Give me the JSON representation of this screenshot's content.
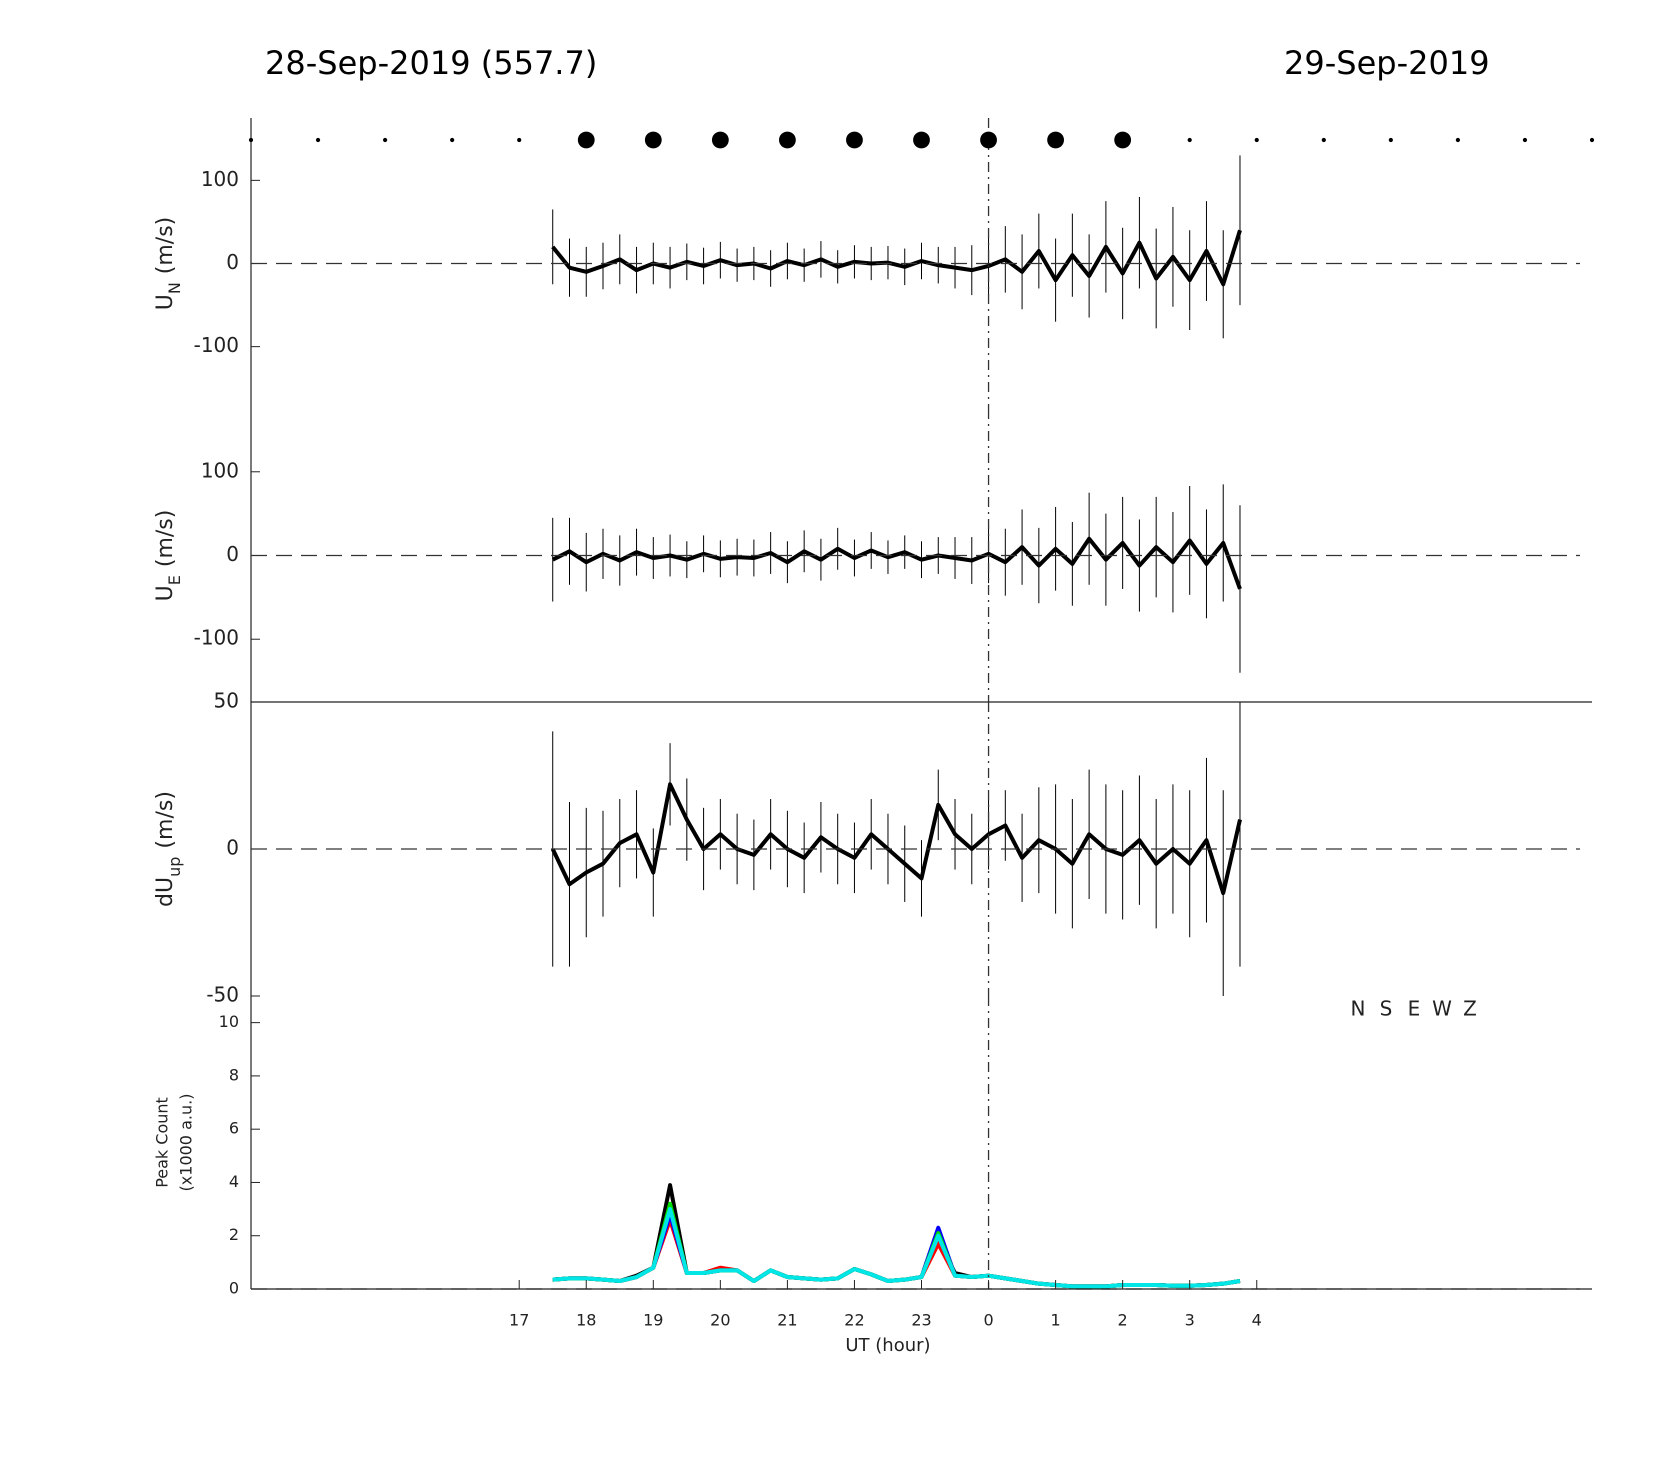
{
  "chart_data": [
    {
      "type": "errorbar",
      "title_left": "28-Sep-2019 (557.7)",
      "title_right": "29-Sep-2019",
      "ylabel": "U",
      "ylabel_sub": "N",
      "ylabel_unit": "(m/s)",
      "xlim": [
        13,
        33
      ],
      "ylim": [
        -175,
        175
      ],
      "yticks": [
        -100,
        0,
        100
      ],
      "vline": 24,
      "dots": {
        "x": [
          13,
          14,
          15,
          16,
          17,
          18,
          19,
          20,
          21,
          22,
          23,
          24,
          25,
          26,
          27,
          28,
          29,
          30,
          31,
          32,
          33
        ],
        "values": [
          1,
          1,
          1,
          1,
          1,
          4,
          4,
          4,
          4,
          4,
          4,
          4,
          4,
          4,
          1,
          1,
          1,
          1,
          1,
          1,
          1
        ]
      },
      "color": "#000000",
      "x": [
        17.5,
        17.75,
        18,
        18.25,
        18.5,
        18.75,
        19,
        19.25,
        19.5,
        19.75,
        20,
        20.25,
        20.5,
        20.75,
        21,
        21.25,
        21.5,
        21.75,
        22,
        22.25,
        22.5,
        22.75,
        23,
        23.25,
        23.5,
        23.75,
        24,
        24.25,
        24.5,
        24.75,
        25,
        25.25,
        25.5,
        25.75,
        26,
        26.25,
        26.5,
        26.75,
        27,
        27.25,
        27.5,
        27.75
      ],
      "values": [
        20,
        -5,
        -10,
        -3,
        5,
        -8,
        0,
        -5,
        2,
        -3,
        4,
        -2,
        0,
        -6,
        3,
        -2,
        5,
        -4,
        2,
        0,
        1,
        -4,
        3,
        -2,
        -5,
        -8,
        -3,
        5,
        -10,
        15,
        -20,
        10,
        -15,
        20,
        -12,
        25,
        -18,
        8,
        -20,
        15,
        -25,
        40
      ],
      "errors": [
        45,
        35,
        30,
        28,
        30,
        28,
        25,
        25,
        22,
        22,
        22,
        20,
        20,
        22,
        22,
        20,
        22,
        20,
        20,
        20,
        20,
        22,
        22,
        22,
        25,
        30,
        35,
        40,
        45,
        45,
        50,
        50,
        50,
        55,
        55,
        55,
        60,
        60,
        60,
        60,
        65,
        90
      ]
    },
    {
      "type": "errorbar",
      "ylabel": "U",
      "ylabel_sub": "E",
      "ylabel_unit": "(m/s)",
      "xlim": [
        13,
        33
      ],
      "ylim": [
        -175,
        175
      ],
      "yticks": [
        -100,
        0,
        100
      ],
      "vline": 24,
      "color": "#000000",
      "x": [
        17.5,
        17.75,
        18,
        18.25,
        18.5,
        18.75,
        19,
        19.25,
        19.5,
        19.75,
        20,
        20.25,
        20.5,
        20.75,
        21,
        21.25,
        21.5,
        21.75,
        22,
        22.25,
        22.5,
        22.75,
        23,
        23.25,
        23.5,
        23.75,
        24,
        24.25,
        24.5,
        24.75,
        25,
        25.25,
        25.5,
        25.75,
        26,
        26.25,
        26.5,
        26.75,
        27,
        27.25,
        27.5,
        27.75
      ],
      "values": [
        -5,
        5,
        -8,
        2,
        -6,
        4,
        -3,
        0,
        -5,
        2,
        -4,
        -2,
        -3,
        3,
        -8,
        5,
        -5,
        8,
        -3,
        6,
        -2,
        4,
        -5,
        0,
        -3,
        -6,
        2,
        -8,
        10,
        -12,
        8,
        -10,
        20,
        -5,
        15,
        -12,
        10,
        -8,
        18,
        -10,
        15,
        -40
      ],
      "errors": [
        50,
        40,
        35,
        30,
        30,
        28,
        25,
        25,
        22,
        22,
        22,
        22,
        22,
        25,
        25,
        25,
        25,
        25,
        22,
        22,
        20,
        20,
        22,
        22,
        25,
        28,
        35,
        40,
        45,
        45,
        50,
        50,
        55,
        55,
        55,
        55,
        60,
        60,
        65,
        65,
        70,
        100
      ]
    },
    {
      "type": "errorbar",
      "ylabel": "dU",
      "ylabel_sub": "up",
      "ylabel_unit": "(m/s)",
      "xlim": [
        13,
        33
      ],
      "ylim": [
        -50,
        50
      ],
      "yticks": [
        -50,
        0,
        50
      ],
      "vline": 24,
      "color": "#000000",
      "x": [
        17.5,
        17.75,
        18,
        18.25,
        18.5,
        18.75,
        19,
        19.25,
        19.5,
        19.75,
        20,
        20.25,
        20.5,
        20.75,
        21,
        21.25,
        21.5,
        21.75,
        22,
        22.25,
        22.5,
        22.75,
        23,
        23.25,
        23.5,
        23.75,
        24,
        24.25,
        24.5,
        24.75,
        25,
        25.25,
        25.5,
        25.75,
        26,
        26.25,
        26.5,
        26.75,
        27,
        27.25,
        27.5,
        27.75
      ],
      "values": [
        0,
        -12,
        -8,
        -5,
        2,
        5,
        -8,
        22,
        10,
        0,
        5,
        0,
        -2,
        5,
        0,
        -3,
        4,
        0,
        -3,
        5,
        0,
        -5,
        -10,
        15,
        5,
        0,
        5,
        8,
        -3,
        3,
        0,
        -5,
        5,
        0,
        -2,
        3,
        -5,
        0,
        -5,
        3,
        -15,
        10
      ],
      "errors": [
        40,
        28,
        22,
        18,
        15,
        15,
        15,
        14,
        14,
        14,
        12,
        12,
        12,
        12,
        13,
        12,
        12,
        12,
        12,
        12,
        12,
        13,
        13,
        12,
        12,
        12,
        12,
        12,
        15,
        18,
        22,
        22,
        22,
        22,
        22,
        22,
        22,
        22,
        25,
        28,
        35,
        50
      ]
    },
    {
      "type": "line",
      "ylabel": [
        "Peak Count",
        "(x1000 a.u.)"
      ],
      "xlabel": "UT (hour)",
      "xlim": [
        13,
        33
      ],
      "ylim": [
        0,
        11
      ],
      "yticks": [
        0,
        2,
        4,
        6,
        8,
        10
      ],
      "vline": 24,
      "xticks": [
        17,
        18,
        19,
        20,
        21,
        22,
        23,
        {
          "value": 24,
          "label": "0"
        },
        {
          "value": 25,
          "label": "1"
        },
        {
          "value": 26,
          "label": "2"
        },
        {
          "value": 27,
          "label": "3"
        },
        {
          "value": 28,
          "label": "4"
        }
      ],
      "x": [
        17.5,
        17.75,
        18,
        18.25,
        18.5,
        18.75,
        19,
        19.25,
        19.5,
        19.75,
        20,
        20.25,
        20.5,
        20.75,
        21,
        21.25,
        21.5,
        21.75,
        22,
        22.25,
        22.5,
        22.75,
        23,
        23.25,
        23.5,
        23.75,
        24,
        24.25,
        24.5,
        24.75,
        25,
        25.25,
        25.5,
        25.75,
        26,
        26.25,
        26.5,
        26.75,
        27,
        27.25,
        27.5,
        27.75
      ],
      "series": [
        {
          "name": "N",
          "color": "#000000",
          "values": [
            0.35,
            0.4,
            0.4,
            0.35,
            0.3,
            0.5,
            0.8,
            3.9,
            0.6,
            0.6,
            0.7,
            0.7,
            0.3,
            0.7,
            0.45,
            0.4,
            0.35,
            0.4,
            0.75,
            0.55,
            0.3,
            0.35,
            0.45,
            1.8,
            0.6,
            0.45,
            0.5,
            0.4,
            0.3,
            0.2,
            0.15,
            0.1,
            0.1,
            0.1,
            0.15,
            0.15,
            0.15,
            0.12,
            0.12,
            0.15,
            0.2,
            0.3
          ]
        },
        {
          "name": "S",
          "color": "#ff0000",
          "values": [
            0.35,
            0.4,
            0.4,
            0.35,
            0.3,
            0.45,
            0.8,
            2.6,
            0.6,
            0.6,
            0.8,
            0.7,
            0.3,
            0.7,
            0.45,
            0.4,
            0.35,
            0.4,
            0.75,
            0.55,
            0.3,
            0.35,
            0.45,
            1.7,
            0.5,
            0.45,
            0.5,
            0.4,
            0.3,
            0.2,
            0.15,
            0.1,
            0.1,
            0.1,
            0.15,
            0.15,
            0.15,
            0.12,
            0.12,
            0.15,
            0.2,
            0.3
          ]
        },
        {
          "name": "E",
          "color": "#0000ff",
          "values": [
            0.35,
            0.4,
            0.4,
            0.35,
            0.3,
            0.45,
            0.8,
            2.8,
            0.6,
            0.6,
            0.7,
            0.7,
            0.3,
            0.7,
            0.45,
            0.4,
            0.35,
            0.4,
            0.75,
            0.55,
            0.3,
            0.35,
            0.45,
            2.3,
            0.5,
            0.45,
            0.5,
            0.4,
            0.3,
            0.2,
            0.15,
            0.1,
            0.1,
            0.1,
            0.15,
            0.15,
            0.15,
            0.12,
            0.12,
            0.15,
            0.2,
            0.3
          ]
        },
        {
          "name": "W",
          "color": "#00e000",
          "values": [
            0.35,
            0.4,
            0.4,
            0.35,
            0.3,
            0.45,
            0.8,
            3.2,
            0.6,
            0.6,
            0.7,
            0.7,
            0.3,
            0.7,
            0.45,
            0.4,
            0.35,
            0.4,
            0.75,
            0.55,
            0.3,
            0.35,
            0.45,
            2.1,
            0.5,
            0.45,
            0.5,
            0.4,
            0.3,
            0.2,
            0.15,
            0.1,
            0.1,
            0.1,
            0.15,
            0.15,
            0.15,
            0.12,
            0.12,
            0.15,
            0.2,
            0.3
          ]
        },
        {
          "name": "Z",
          "color": "#00e5e5",
          "values": [
            0.35,
            0.4,
            0.4,
            0.35,
            0.3,
            0.45,
            0.8,
            3.0,
            0.6,
            0.6,
            0.7,
            0.7,
            0.3,
            0.7,
            0.45,
            0.4,
            0.35,
            0.4,
            0.75,
            0.55,
            0.3,
            0.35,
            0.45,
            2.0,
            0.5,
            0.45,
            0.5,
            0.4,
            0.3,
            0.2,
            0.15,
            0.1,
            0.1,
            0.1,
            0.15,
            0.15,
            0.15,
            0.12,
            0.12,
            0.15,
            0.2,
            0.3
          ]
        }
      ]
    }
  ]
}
